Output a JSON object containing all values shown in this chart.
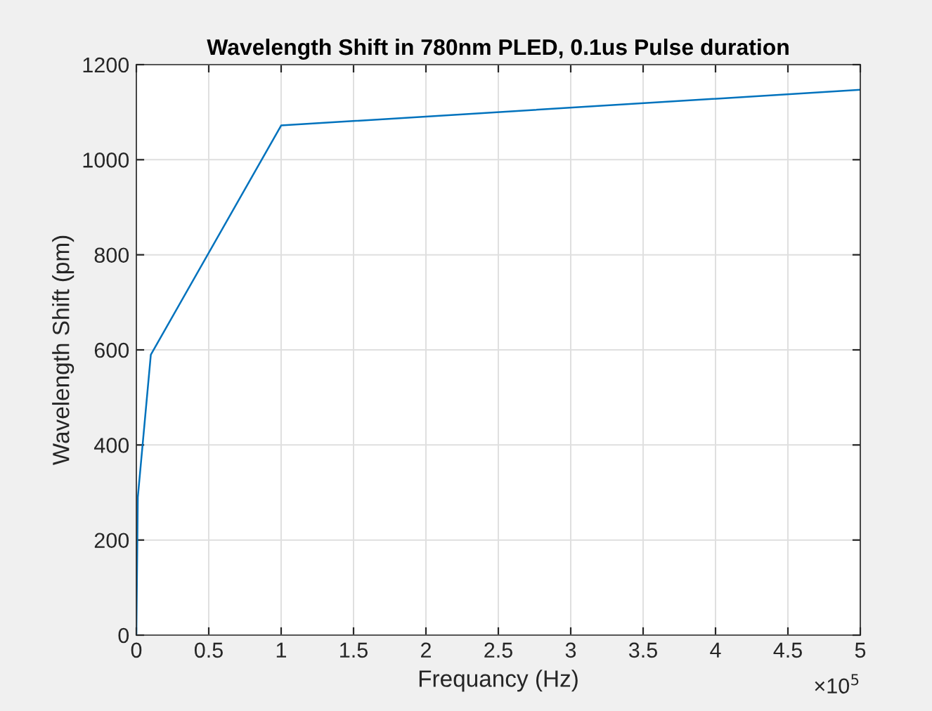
{
  "chart_data": {
    "type": "line",
    "title": "Wavelength Shift in 780nm PLED, 0.1us Pulse duration",
    "xlabel": "Frequancy (Hz)",
    "ylabel": "Wavelength Shift (pm)",
    "x": [
      0,
      0.01,
      0.1,
      1,
      5
    ],
    "series": [
      {
        "color": "#0072bd",
        "values": [
          0,
          290,
          590,
          1072,
          1147
        ]
      }
    ],
    "xlim": [
      0,
      5
    ],
    "ylim": [
      0,
      1200
    ],
    "xticks": [
      0,
      0.5,
      1,
      1.5,
      2,
      2.5,
      3,
      3.5,
      4,
      4.5,
      5
    ],
    "yticks": [
      0,
      200,
      400,
      600,
      800,
      1000,
      1200
    ],
    "annotations": [
      "×10$^{5}$"
    ],
    "grid": true,
    "marker": "none",
    "line_style": "solid"
  }
}
